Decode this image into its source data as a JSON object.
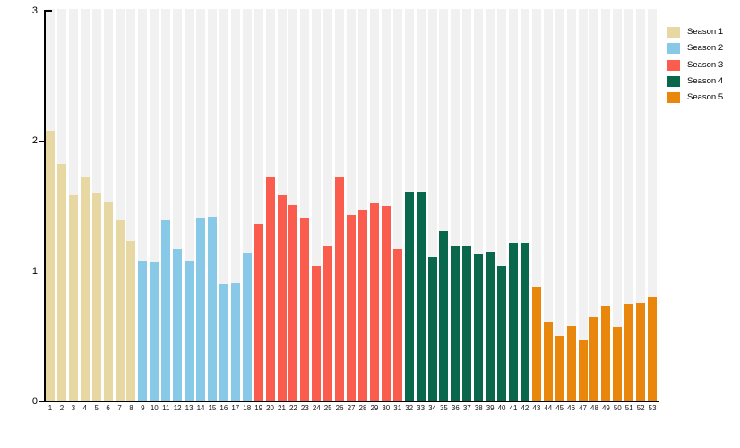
{
  "chart_data": {
    "type": "bar",
    "title": "",
    "xlabel": "",
    "ylabel": "",
    "ylim": [
      0,
      3
    ],
    "y_ticks": [
      0,
      1,
      2,
      3
    ],
    "grid": "vertical light-gray background stripe per bar",
    "legend_position": "top-right",
    "axis_color": "#000000",
    "stripe_color": "#f1f1f1",
    "categories": [
      1,
      2,
      3,
      4,
      5,
      6,
      7,
      8,
      9,
      10,
      11,
      12,
      13,
      14,
      15,
      16,
      17,
      18,
      19,
      20,
      21,
      22,
      23,
      24,
      25,
      26,
      27,
      28,
      29,
      30,
      31,
      32,
      33,
      34,
      35,
      36,
      37,
      38,
      39,
      40,
      41,
      42,
      43,
      44,
      45,
      46,
      47,
      48,
      49,
      50,
      51,
      52,
      53
    ],
    "series": [
      {
        "name": "Season 1",
        "color": "#e6d7a3",
        "episodes": "1-8",
        "values": [
          2.08,
          1.82,
          1.58,
          1.72,
          1.6,
          1.53,
          1.4,
          1.23
        ]
      },
      {
        "name": "Season 2",
        "color": "#87c9e6",
        "episodes": "9-18",
        "values": [
          1.08,
          1.07,
          1.39,
          1.17,
          1.08,
          1.41,
          1.42,
          0.9,
          0.91,
          1.14
        ]
      },
      {
        "name": "Season 3",
        "color": "#fa5c4d",
        "episodes": "19-31",
        "values": [
          1.36,
          1.72,
          1.58,
          1.51,
          1.41,
          1.04,
          1.2,
          1.72,
          1.43,
          1.47,
          1.52,
          1.5,
          1.17
        ]
      },
      {
        "name": "Season 4",
        "color": "#09684c",
        "episodes": "32-42",
        "values": [
          1.61,
          1.61,
          1.11,
          1.31,
          1.2,
          1.19,
          1.13,
          1.15,
          1.04,
          1.22,
          1.22
        ]
      },
      {
        "name": "Season 5",
        "color": "#e9860c",
        "episodes": "43-53",
        "values": [
          0.88,
          0.61,
          0.5,
          0.58,
          0.47,
          0.65,
          0.73,
          0.57,
          0.75,
          0.76,
          0.8
        ]
      }
    ]
  }
}
